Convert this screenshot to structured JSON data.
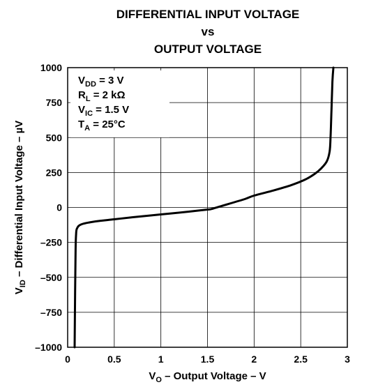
{
  "chart_data": {
    "type": "line",
    "title_lines": [
      "DIFFERENTIAL INPUT VOLTAGE",
      "vs",
      "OUTPUT VOLTAGE"
    ],
    "xlabel": {
      "main": "V",
      "sub": "O",
      "rest": " – Output Voltage – V"
    },
    "ylabel": {
      "main": "V",
      "sub": "ID",
      "rest": "  – Differential Input Voltage – µV"
    },
    "xlim": [
      0,
      3
    ],
    "ylim": [
      -1000,
      1000
    ],
    "xticks": [
      0,
      0.5,
      1,
      1.5,
      2,
      2.5,
      3
    ],
    "xtick_labels": [
      "0",
      "0.5",
      "1",
      "1.5",
      "2",
      "2.5",
      "3"
    ],
    "yticks": [
      1000,
      750,
      500,
      250,
      0,
      -250,
      -500,
      -750,
      -1000
    ],
    "ytick_labels": [
      "1000",
      "750",
      "500",
      "250",
      "0",
      "–250",
      "–500",
      "–750",
      "–1000"
    ],
    "grid": true,
    "annotations": [
      {
        "main": "V",
        "sub": "DD",
        "rest": " = 3 V"
      },
      {
        "main": "R",
        "sub": "L",
        "rest": " = 2 kΩ"
      },
      {
        "main": "V",
        "sub": "IC",
        "rest": " = 1.5 V"
      },
      {
        "main": "T",
        "sub": "A",
        "rest": " = 25°C"
      }
    ],
    "series": [
      {
        "color": "#000000",
        "points": [
          [
            0.075,
            -1000
          ],
          [
            0.08,
            -600
          ],
          [
            0.085,
            -300
          ],
          [
            0.09,
            -200
          ],
          [
            0.1,
            -150
          ],
          [
            0.15,
            -120
          ],
          [
            0.3,
            -100
          ],
          [
            0.5,
            -85
          ],
          [
            0.7,
            -70
          ],
          [
            1.0,
            -50
          ],
          [
            1.3,
            -30
          ],
          [
            1.5,
            -15
          ],
          [
            1.55,
            -10
          ],
          [
            1.7,
            20
          ],
          [
            1.9,
            60
          ],
          [
            2.0,
            85
          ],
          [
            2.2,
            120
          ],
          [
            2.4,
            160
          ],
          [
            2.55,
            200
          ],
          [
            2.65,
            240
          ],
          [
            2.72,
            280
          ],
          [
            2.78,
            330
          ],
          [
            2.81,
            400
          ],
          [
            2.82,
            500
          ],
          [
            2.83,
            700
          ],
          [
            2.84,
            900
          ],
          [
            2.85,
            1000
          ]
        ]
      }
    ]
  }
}
